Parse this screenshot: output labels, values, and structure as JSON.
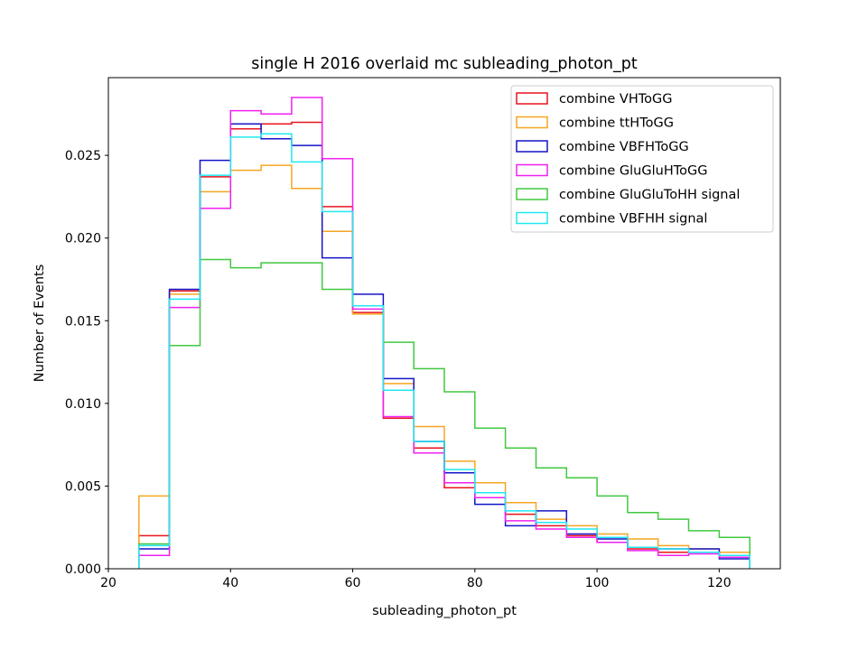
{
  "chart_data": {
    "type": "histogram-step",
    "title": "single H 2016 overlaid mc subleading_photon_pt",
    "xlabel": "subleading_photon_pt",
    "ylabel": "Number of Events",
    "xlim": [
      20,
      130
    ],
    "ylim": [
      0,
      0.0297
    ],
    "xticks": [
      20,
      40,
      60,
      80,
      100,
      120
    ],
    "yticks": [
      0.0,
      0.005,
      0.01,
      0.015,
      0.02,
      0.025
    ],
    "ytick_labels": [
      "0.000",
      "0.005",
      "0.010",
      "0.015",
      "0.020",
      "0.025"
    ],
    "legend_position": "top-right",
    "bin_edges": [
      25,
      30,
      35,
      40,
      45,
      50,
      55,
      60,
      65,
      70,
      75,
      80,
      85,
      90,
      95,
      100,
      105,
      110,
      115,
      120,
      125
    ],
    "series": [
      {
        "name": "combine VHToGG",
        "color": "#e8141e",
        "values": [
          0.002,
          0.0168,
          0.0237,
          0.0266,
          0.0269,
          0.027,
          0.0219,
          0.0155,
          0.0091,
          0.0073,
          0.0049,
          0.0043,
          0.0033,
          0.0026,
          0.002,
          0.0016,
          0.0012,
          0.001,
          0.001,
          0.0007
        ]
      },
      {
        "name": "combine ttHToGG",
        "color": "#f5a623",
        "values": [
          0.0044,
          0.0166,
          0.0228,
          0.0241,
          0.0244,
          0.023,
          0.0204,
          0.0154,
          0.0112,
          0.0086,
          0.0065,
          0.0052,
          0.004,
          0.003,
          0.0026,
          0.0021,
          0.0018,
          0.0014,
          0.0012,
          0.001
        ]
      },
      {
        "name": "combine VBFHToGG",
        "color": "#1414c8",
        "values": [
          0.0012,
          0.0169,
          0.0247,
          0.0269,
          0.026,
          0.0256,
          0.0188,
          0.0166,
          0.0115,
          0.0077,
          0.0058,
          0.0039,
          0.0026,
          0.0035,
          0.0021,
          0.0018,
          0.0013,
          0.0012,
          0.0012,
          0.0006
        ]
      },
      {
        "name": "combine GluGluHToGG",
        "color": "#f020f0",
        "values": [
          0.0008,
          0.0158,
          0.0218,
          0.0277,
          0.0275,
          0.0285,
          0.0248,
          0.0157,
          0.0092,
          0.007,
          0.0052,
          0.0043,
          0.0029,
          0.0024,
          0.0019,
          0.0016,
          0.0011,
          0.0008,
          0.0009,
          0.0007
        ]
      },
      {
        "name": "combine GluGluToHH signal",
        "color": "#40c840",
        "values": [
          0.0015,
          0.0135,
          0.0187,
          0.0182,
          0.0185,
          0.0185,
          0.0169,
          0.0159,
          0.0137,
          0.0121,
          0.0107,
          0.0085,
          0.0073,
          0.0061,
          0.0055,
          0.0044,
          0.0034,
          0.003,
          0.0023,
          0.0019
        ]
      },
      {
        "name": "combine VBFHH signal",
        "color": "#20e8f0",
        "values": [
          0.0014,
          0.0163,
          0.0238,
          0.0261,
          0.0263,
          0.0246,
          0.0216,
          0.0159,
          0.0108,
          0.0077,
          0.006,
          0.0046,
          0.0035,
          0.0028,
          0.0024,
          0.0019,
          0.0013,
          0.0012,
          0.001,
          0.0008
        ]
      }
    ]
  }
}
